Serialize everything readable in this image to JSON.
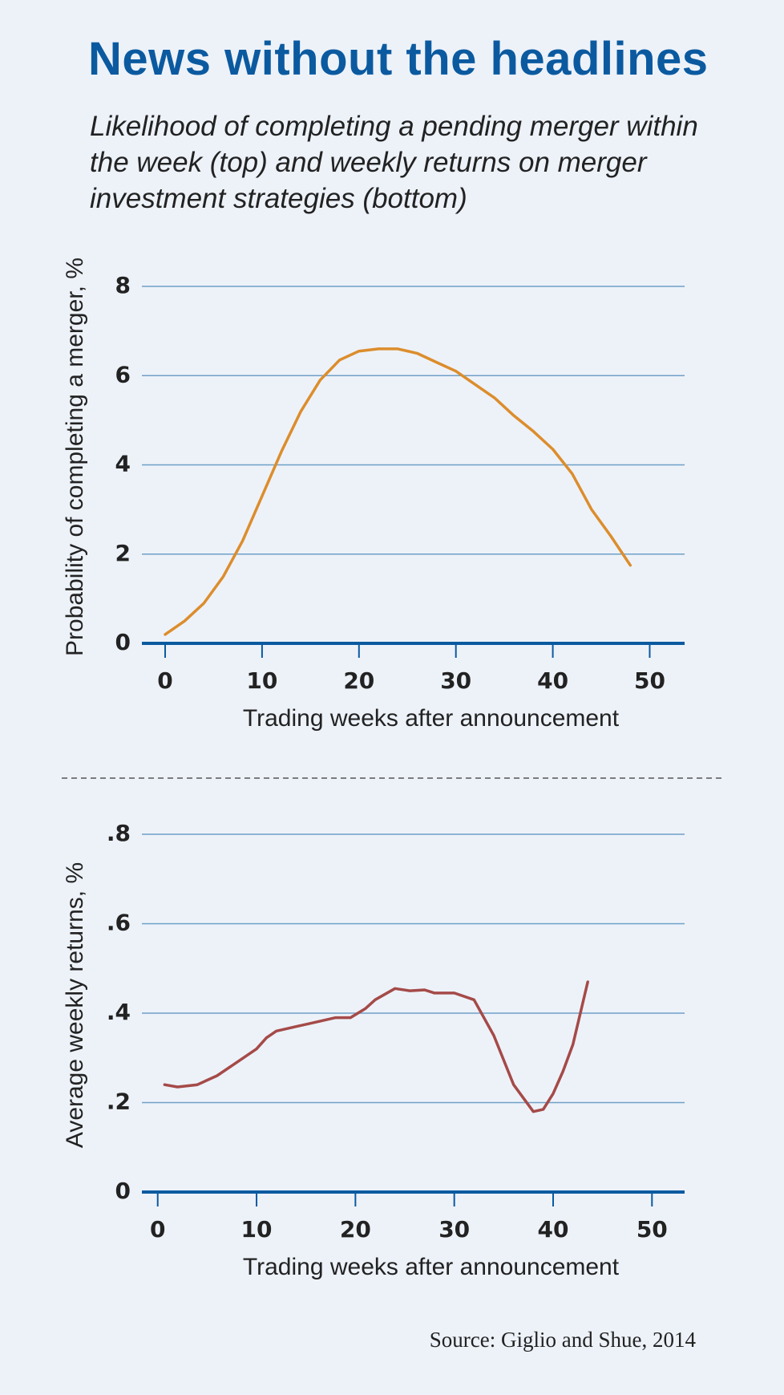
{
  "title": "News without the headlines",
  "subtitle": "Likelihood of completing a pending merger within the week (top) and weekly returns on merger investment strategies (bottom)",
  "source": "Source: Giglio and Shue, 2014",
  "chart_data": [
    {
      "type": "line",
      "x_label": "Trading weeks after announcement",
      "y_label": "Probability of completing a merger, %",
      "xlim": [
        -2.4,
        53.6
      ],
      "ylim": [
        0,
        8
      ],
      "xticks": [
        0,
        10,
        20,
        30,
        40,
        50
      ],
      "yticks": [
        0,
        2,
        4,
        6,
        8
      ],
      "grid": true,
      "series": [
        {
          "color": "#dc8d2c",
          "x": [
            0,
            2,
            4,
            6,
            8,
            10,
            12,
            14,
            16,
            18,
            20,
            22,
            24,
            26,
            28,
            30,
            32,
            34,
            36,
            38,
            40,
            42,
            44,
            46,
            48
          ],
          "values": [
            0.2,
            0.5,
            0.9,
            1.5,
            2.3,
            3.3,
            4.3,
            5.2,
            5.9,
            6.35,
            6.55,
            6.6,
            6.6,
            6.5,
            6.3,
            6.1,
            5.8,
            5.5,
            5.1,
            4.75,
            4.35,
            3.8,
            3.0,
            2.4,
            1.75
          ]
        }
      ]
    },
    {
      "type": "line",
      "x_label": "Trading weeks after announcement",
      "y_label": "Average weekly returns, %",
      "xlim": [
        -1.6,
        53.3
      ],
      "ylim": [
        0,
        0.8
      ],
      "xticks": [
        0,
        10,
        20,
        30,
        40,
        50
      ],
      "yticks": [
        0,
        {
          "value": 0.2,
          "label": ".2"
        },
        {
          "value": 0.4,
          "label": ".4"
        },
        {
          "value": 0.6,
          "label": ".6"
        },
        {
          "value": 0.8,
          "label": ".8"
        }
      ],
      "grid": true,
      "series": [
        {
          "color": "#a54a48",
          "x": [
            0.7,
            2,
            4,
            6,
            8,
            10,
            11,
            12,
            14,
            16,
            18,
            19.5,
            21,
            22,
            24,
            25.5,
            27,
            28,
            30,
            32,
            34,
            36,
            38,
            39,
            40,
            41,
            42,
            43.5
          ],
          "values": [
            0.24,
            0.235,
            0.24,
            0.26,
            0.29,
            0.32,
            0.345,
            0.36,
            0.37,
            0.38,
            0.39,
            0.39,
            0.41,
            0.43,
            0.455,
            0.45,
            0.452,
            0.445,
            0.445,
            0.43,
            0.35,
            0.24,
            0.18,
            0.185,
            0.22,
            0.27,
            0.33,
            0.47
          ]
        }
      ]
    }
  ]
}
